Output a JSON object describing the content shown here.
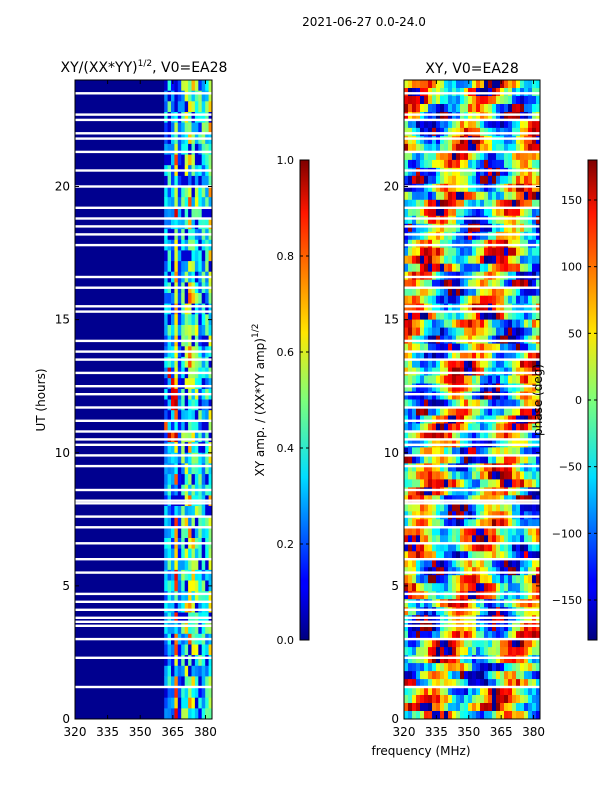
{
  "figure_title": "2021-06-27 0.0-24.0",
  "chart_data": [
    {
      "type": "heatmap",
      "title_main": "XY/(XX*YY)",
      "title_exponent": "1/2",
      "title_suffix": ", V0=EA28",
      "xlabel": "",
      "ylabel": "UT (hours)",
      "xlim": [
        320,
        383
      ],
      "ylim": [
        0,
        24
      ],
      "xticks": [
        320,
        335,
        350,
        365,
        380
      ],
      "yticks": [
        0,
        5,
        10,
        15,
        20
      ],
      "colormap": "jet",
      "colorbar": {
        "label_main": "XY amp. / (XX*YY amp)",
        "label_exponent": "1/2",
        "range": [
          0.0,
          1.0
        ],
        "ticks": [
          "0.0",
          "0.2",
          "0.4",
          "0.6",
          "0.8",
          "1.0"
        ]
      },
      "bright_band_start_mhz": 361
    },
    {
      "type": "heatmap",
      "title": "XY, V0=EA28",
      "xlabel": "frequency (MHz)",
      "ylabel": "",
      "xlim": [
        320,
        383
      ],
      "ylim": [
        0,
        24
      ],
      "xticks": [
        320,
        335,
        350,
        365,
        380
      ],
      "yticks": [
        0,
        5,
        10,
        15,
        20
      ],
      "colormap": "jet",
      "colorbar": {
        "label": "phase (deg)",
        "range": [
          -180,
          180
        ],
        "ticks": [
          "150",
          "100",
          "50",
          "0",
          "−50",
          "−100",
          "−150"
        ]
      }
    }
  ],
  "flagged_gaps_ut_hours": [
    1.2,
    2.3,
    3.0,
    3.5,
    3.65,
    3.8,
    4.1,
    4.4,
    4.7,
    5.5,
    6.0,
    6.6,
    7.2,
    7.6,
    8.1,
    8.2,
    8.6,
    9.5,
    9.9,
    10.3,
    10.5,
    10.8,
    11.2,
    11.7,
    12.2,
    12.5,
    13.0,
    13.5,
    13.8,
    14.2,
    15.3,
    15.5,
    16.2,
    16.6,
    17.8,
    18.2,
    18.5,
    18.8,
    19.2,
    20.0,
    20.6,
    21.3,
    21.8,
    22.0,
    22.5,
    22.7,
    23.5
  ]
}
